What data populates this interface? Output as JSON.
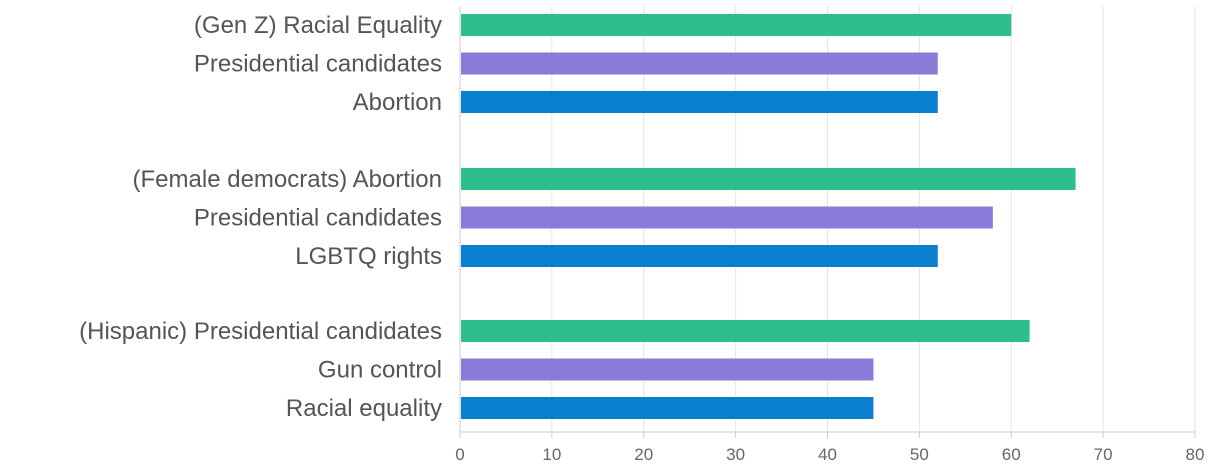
{
  "chart_data": {
    "type": "bar",
    "orientation": "horizontal",
    "title": "",
    "xlabel": "",
    "ylabel": "",
    "xlim": [
      0,
      80
    ],
    "x_ticks": [
      "0",
      "10",
      "20",
      "30",
      "40",
      "50",
      "60",
      "70",
      "80"
    ],
    "grid": true,
    "legend": "none",
    "colors": {
      "first": "#2dbf8b",
      "second": "#8c7ad8",
      "third": "#0a7ecf"
    },
    "groups": [
      {
        "bars": [
          {
            "label": "(Gen Z) Racial Equality",
            "value": 60,
            "color": "first"
          },
          {
            "label": "Presidential candidates",
            "value": 52,
            "color": "second"
          },
          {
            "label": "Abortion",
            "value": 52,
            "color": "third"
          }
        ]
      },
      {
        "bars": [
          {
            "label": "(Female democrats) Abortion",
            "value": 67,
            "color": "first"
          },
          {
            "label": "Presidential candidates",
            "value": 58,
            "color": "second"
          },
          {
            "label": "LGBTQ rights",
            "value": 52,
            "color": "third"
          }
        ]
      },
      {
        "bars": [
          {
            "label": "(Hispanic) Presidential candidates",
            "value": 62,
            "color": "first"
          },
          {
            "label": "Gun control",
            "value": 45,
            "color": "second"
          },
          {
            "label": "Racial equality",
            "value": 45,
            "color": "third"
          }
        ]
      }
    ]
  }
}
